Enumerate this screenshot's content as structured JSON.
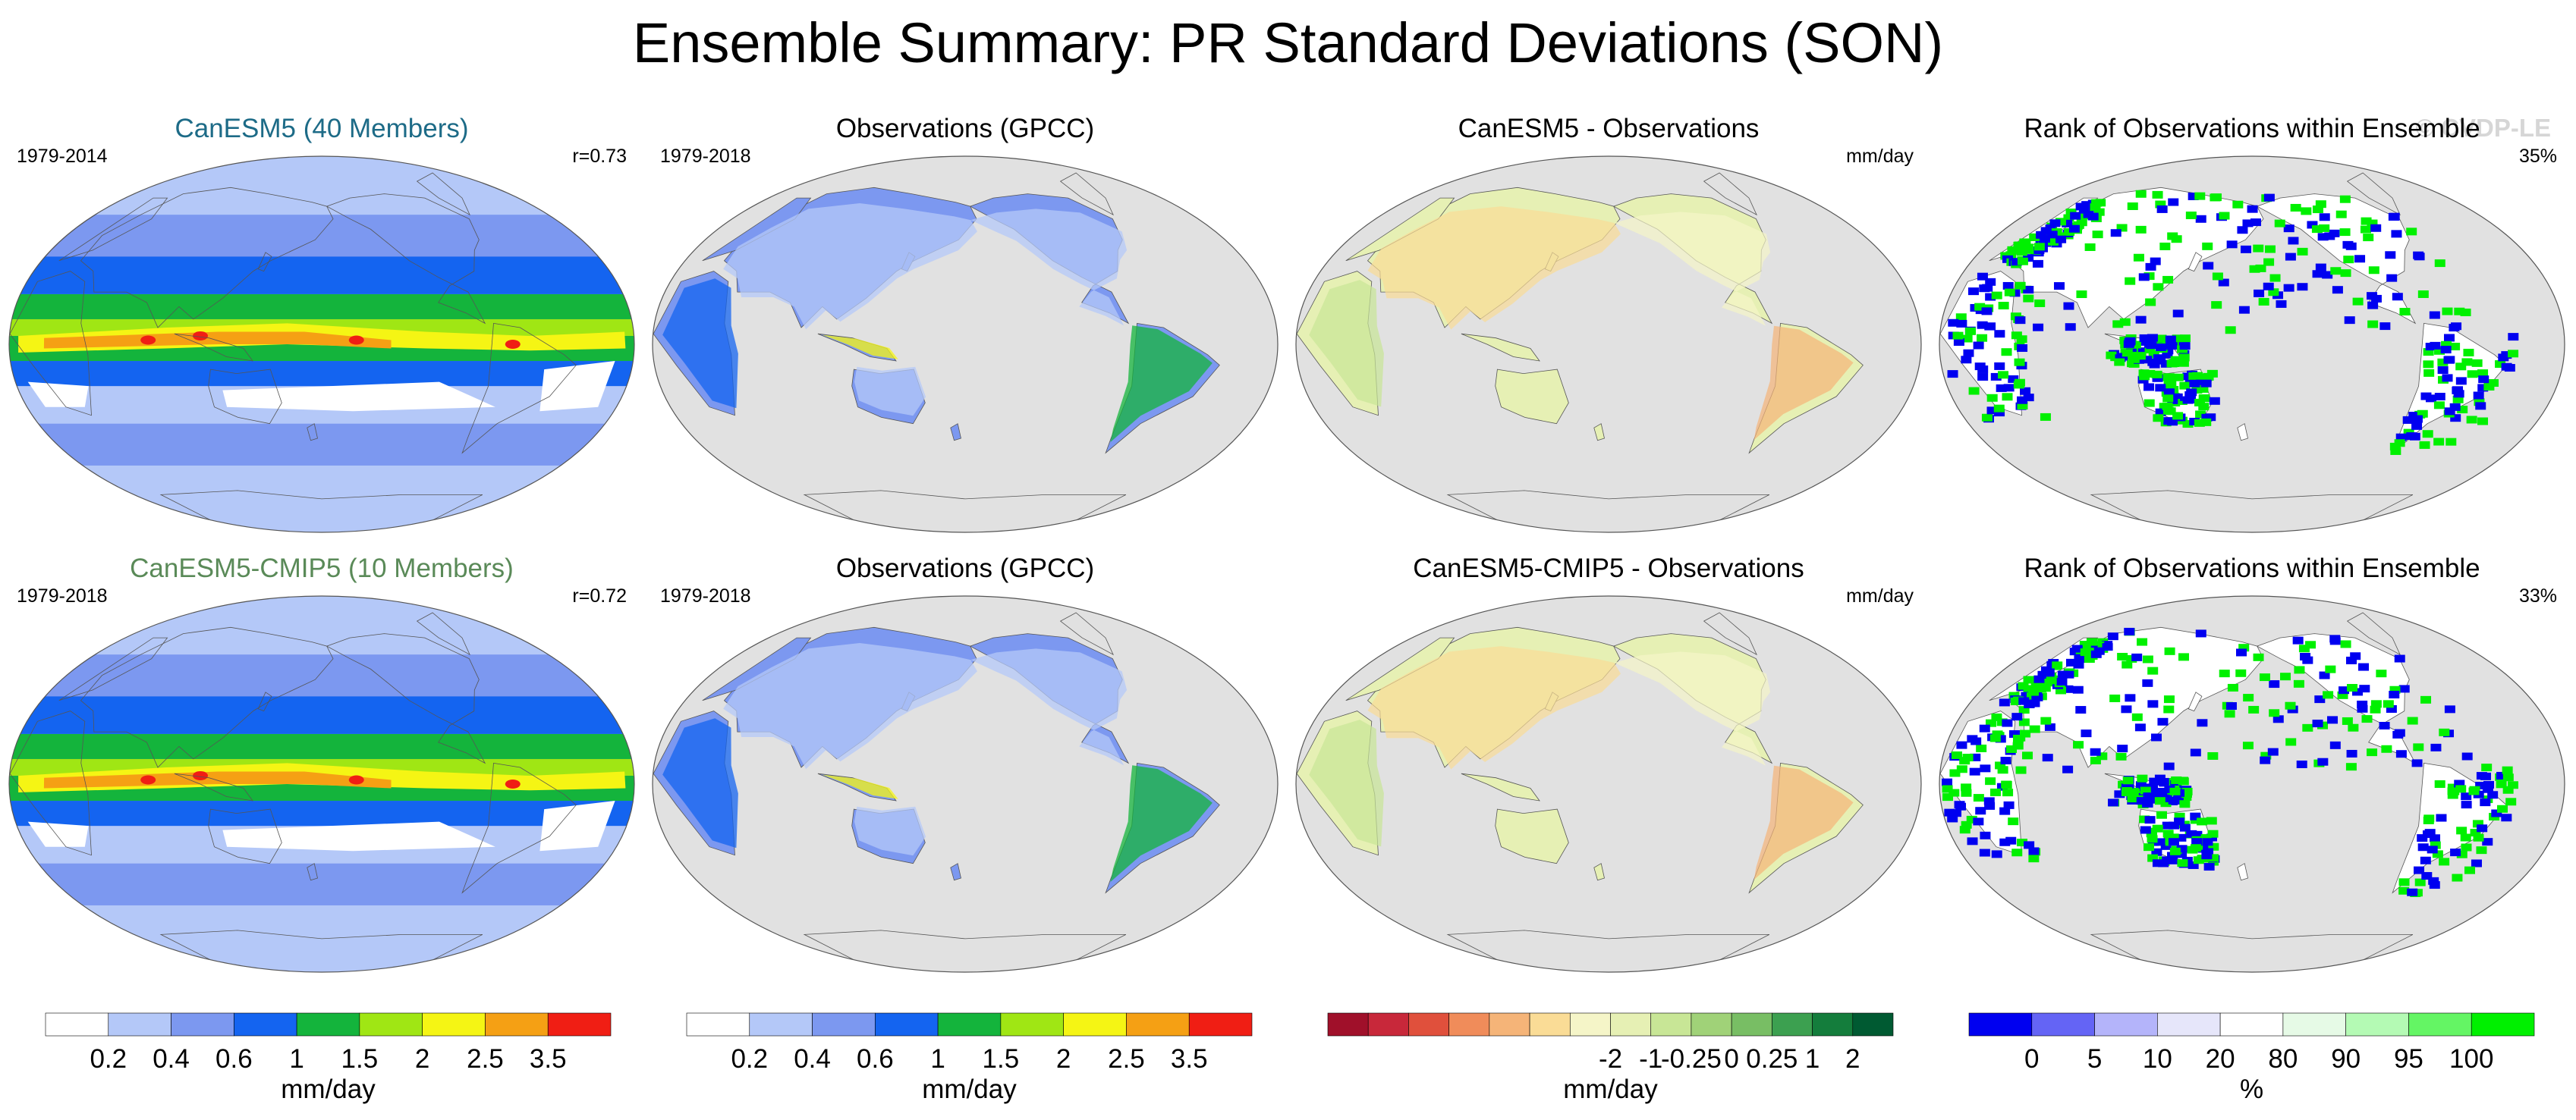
{
  "title": "Ensemble Summary: PR Standard Deviations (SON)",
  "watermark": "© CVDP-LE",
  "rows": [
    {
      "panels": [
        {
          "title": "CanESM5 (40 Members)",
          "title_color": "#1d6b87",
          "years": "1979-2014",
          "stat": "r=0.73",
          "kind": "model"
        },
        {
          "title": "Observations (GPCC)",
          "title_color": "#000000",
          "years": "1979-2018",
          "stat": "",
          "kind": "obs"
        },
        {
          "title": "CanESM5 - Observations",
          "title_color": "#000000",
          "years": "",
          "stat": "mm/day",
          "kind": "diff"
        },
        {
          "title": "Rank of Observations within Ensemble",
          "title_color": "#000000",
          "years": "",
          "stat": "35%",
          "kind": "rank"
        }
      ]
    },
    {
      "panels": [
        {
          "title": "CanESM5-CMIP5 (10 Members)",
          "title_color": "#5a8a58",
          "years": "1979-2018",
          "stat": "r=0.72",
          "kind": "model"
        },
        {
          "title": "Observations (GPCC)",
          "title_color": "#000000",
          "years": "1979-2018",
          "stat": "",
          "kind": "obs"
        },
        {
          "title": "CanESM5-CMIP5 - Observations",
          "title_color": "#000000",
          "years": "",
          "stat": "mm/day",
          "kind": "diff"
        },
        {
          "title": "Rank of Observations within Ensemble",
          "title_color": "#000000",
          "years": "",
          "stat": "33%",
          "kind": "rank"
        }
      ]
    }
  ],
  "colorbars": [
    {
      "unit": "mm/day",
      "colors": [
        "#ffffff",
        "#b4c8f8",
        "#7c98f0",
        "#1464f0",
        "#14b43c",
        "#a0e614",
        "#f5f514",
        "#f5a014",
        "#f01e14"
      ],
      "labels": [
        "0.2",
        "0.4",
        "0.6",
        "1",
        "1.5",
        "2",
        "2.5",
        "3.5"
      ]
    },
    {
      "unit": "mm/day",
      "colors": [
        "#ffffff",
        "#b4c8f8",
        "#7c98f0",
        "#1464f0",
        "#14b43c",
        "#a0e614",
        "#f5f514",
        "#f5a014",
        "#f01e14"
      ],
      "labels": [
        "0.2",
        "0.4",
        "0.6",
        "1",
        "1.5",
        "2",
        "2.5",
        "3.5"
      ]
    },
    {
      "unit": "mm/day",
      "colors": [
        "#a0102a",
        "#c8283a",
        "#e0503c",
        "#f08c5a",
        "#f5b478",
        "#fadc96",
        "#f5f5c8",
        "#e6f0b4",
        "#c8e696",
        "#a0d278",
        "#78be64",
        "#3ca050",
        "#147d3c",
        "#005a32"
      ],
      "labels": [
        "-2",
        "-1",
        "-0.25",
        "0",
        "0.25",
        "1",
        "2"
      ]
    },
    {
      "unit": "%",
      "colors": [
        "#0000f0",
        "#6464f5",
        "#b4b4fa",
        "#e6e6fa",
        "#ffffff",
        "#e6fae6",
        "#b4fab4",
        "#64f564",
        "#00f000"
      ],
      "labels": [
        "0",
        "5",
        "10",
        "20",
        "80",
        "90",
        "95",
        "100"
      ]
    }
  ],
  "chart_data": [
    {
      "type": "heatmap",
      "title": "CanESM5 (40 Members)",
      "subtitle": "1979-2014",
      "annotation": "r=0.73",
      "variable": "PR standard deviation (SON)",
      "units": "mm/day",
      "levels": [
        0.2,
        0.4,
        0.6,
        1,
        1.5,
        2,
        2.5,
        3.5
      ]
    },
    {
      "type": "heatmap",
      "title": "Observations (GPCC)",
      "subtitle": "1979-2018",
      "variable": "PR standard deviation (SON)",
      "units": "mm/day",
      "levels": [
        0.2,
        0.4,
        0.6,
        1,
        1.5,
        2,
        2.5,
        3.5
      ]
    },
    {
      "type": "heatmap",
      "title": "CanESM5 - Observations",
      "units": "mm/day",
      "levels": [
        -2,
        -1,
        -0.25,
        0,
        0.25,
        1,
        2
      ]
    },
    {
      "type": "heatmap",
      "title": "Rank of Observations within Ensemble",
      "annotation": "35%",
      "units": "%",
      "levels": [
        0,
        5,
        10,
        20,
        80,
        90,
        95,
        100
      ]
    },
    {
      "type": "heatmap",
      "title": "CanESM5-CMIP5 (10 Members)",
      "subtitle": "1979-2018",
      "annotation": "r=0.72",
      "variable": "PR standard deviation (SON)",
      "units": "mm/day",
      "levels": [
        0.2,
        0.4,
        0.6,
        1,
        1.5,
        2,
        2.5,
        3.5
      ]
    },
    {
      "type": "heatmap",
      "title": "Observations (GPCC)",
      "subtitle": "1979-2018",
      "variable": "PR standard deviation (SON)",
      "units": "mm/day",
      "levels": [
        0.2,
        0.4,
        0.6,
        1,
        1.5,
        2,
        2.5,
        3.5
      ]
    },
    {
      "type": "heatmap",
      "title": "CanESM5-CMIP5 - Observations",
      "units": "mm/day",
      "levels": [
        -2,
        -1,
        -0.25,
        0,
        0.25,
        1,
        2
      ]
    },
    {
      "type": "heatmap",
      "title": "Rank of Observations within Ensemble",
      "annotation": "33%",
      "units": "%",
      "levels": [
        0,
        5,
        10,
        20,
        80,
        90,
        95,
        100
      ]
    }
  ]
}
